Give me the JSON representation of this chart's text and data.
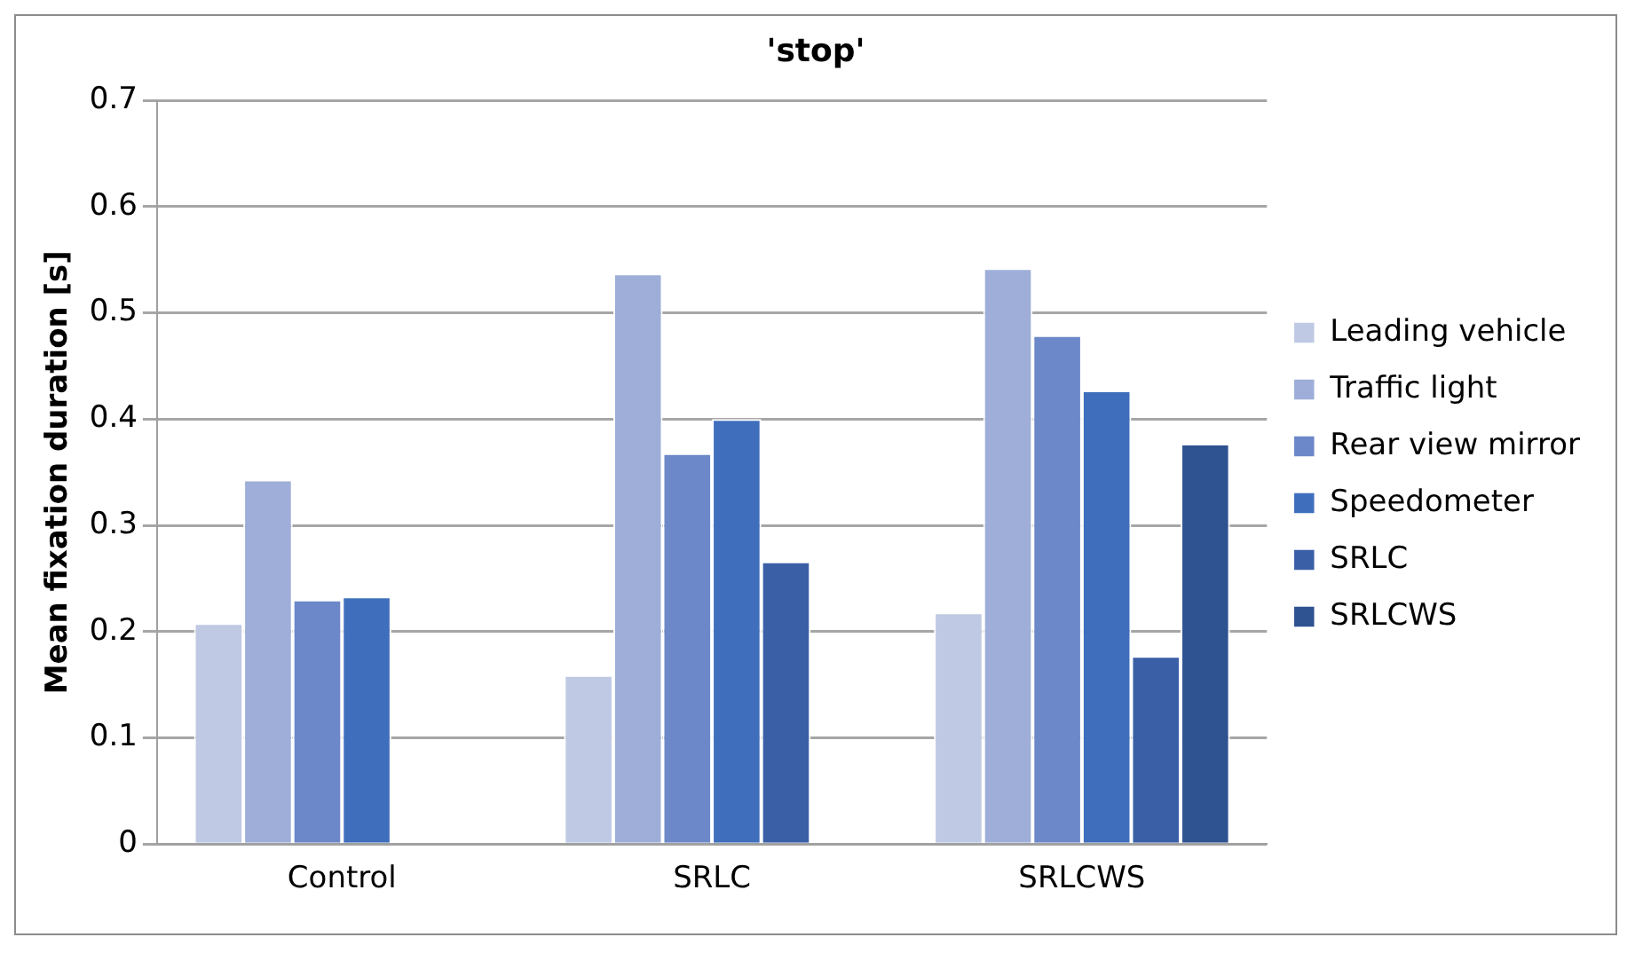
{
  "chart_data": {
    "type": "bar",
    "title": "'stop'",
    "ylabel": "Mean fixation duration [s]",
    "categories": [
      "Control",
      "SRLC",
      "SRLCWS"
    ],
    "series": [
      {
        "name": "Leading vehicle",
        "color": "#bfc9e3",
        "values": [
          0.208,
          0.159,
          0.218
        ]
      },
      {
        "name": "Traffic light",
        "color": "#9eaed8",
        "values": [
          0.343,
          0.537,
          0.542
        ]
      },
      {
        "name": "Rear view mirror",
        "color": "#6c88c9",
        "values": [
          0.23,
          0.368,
          0.479
        ]
      },
      {
        "name": "Speedometer",
        "color": "#3f6fbc",
        "values": [
          0.233,
          0.4,
          0.427
        ]
      },
      {
        "name": "SRLC",
        "color": "#3a5fa6",
        "values": [
          null,
          0.266,
          0.177
        ]
      },
      {
        "name": "SRLCWS",
        "color": "#2f5290",
        "values": [
          null,
          null,
          0.377
        ]
      }
    ],
    "ylim": [
      0,
      0.7
    ],
    "yticks": [
      0,
      0.1,
      0.2,
      0.3,
      0.4,
      0.5,
      0.6,
      0.7
    ],
    "grid": "y",
    "legend": "right"
  }
}
